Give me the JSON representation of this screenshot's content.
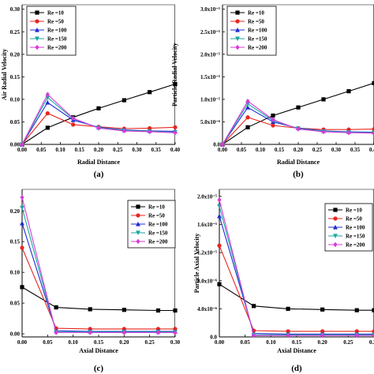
{
  "chart_data": [
    {
      "type": "line",
      "panel_label": "(a)",
      "xlabel": "Radial Distance",
      "ylabel": "Air Radial Velocity",
      "xlim": [
        0.0,
        0.4
      ],
      "ylim": [
        0.0,
        0.31
      ],
      "xticks": [
        "0.00",
        "0.05",
        "0.10",
        "0.15",
        "0.20",
        "0.25",
        "0.30",
        "0.35",
        "0.40"
      ],
      "yticks": [
        "0.00",
        "0.05",
        "0.10",
        "0.15",
        "0.20",
        "0.25",
        "0.30"
      ],
      "legend_position": "top-left",
      "series": [
        {
          "name": "Re =10",
          "color": "#000000",
          "marker": "square",
          "x": [
            0,
            0.0667,
            0.1333,
            0.2,
            0.2667,
            0.3333,
            0.4
          ],
          "y": [
            0,
            0.037,
            0.06,
            0.08,
            0.098,
            0.116,
            0.134
          ]
        },
        {
          "name": "Re =50",
          "color": "#e8261f",
          "marker": "circle",
          "x": [
            0,
            0.0667,
            0.1333,
            0.2,
            0.2667,
            0.3333,
            0.4
          ],
          "y": [
            0,
            0.069,
            0.044,
            0.039,
            0.035,
            0.036,
            0.038
          ]
        },
        {
          "name": "Re =100",
          "color": "#1f2bd6",
          "marker": "triangle-up",
          "x": [
            0,
            0.0667,
            0.1333,
            0.2,
            0.2667,
            0.3333,
            0.4
          ],
          "y": [
            0,
            0.093,
            0.054,
            0.038,
            0.032,
            0.03,
            0.029
          ]
        },
        {
          "name": "Re =150",
          "color": "#1aa6a0",
          "marker": "triangle-down",
          "x": [
            0,
            0.0667,
            0.1333,
            0.2,
            0.2667,
            0.3333,
            0.4
          ],
          "y": [
            0,
            0.104,
            0.057,
            0.037,
            0.031,
            0.029,
            0.027
          ]
        },
        {
          "name": "Re =200",
          "color": "#d93ad9",
          "marker": "diamond",
          "x": [
            0,
            0.0667,
            0.1333,
            0.2,
            0.2667,
            0.3333,
            0.4
          ],
          "y": [
            0,
            0.111,
            0.058,
            0.036,
            0.03,
            0.028,
            0.026
          ]
        }
      ]
    },
    {
      "type": "line",
      "panel_label": "(b)",
      "xlabel": "Radial Distance",
      "ylabel": "Particle Radial Velocity",
      "xlim": [
        0.0,
        0.4
      ],
      "ylim": [
        0.0,
        3.1
      ],
      "xticks": [
        "0.00",
        "0.05",
        "0.10",
        "0.15",
        "0.20",
        "0.25",
        "0.30",
        "0.35",
        "0.40"
      ],
      "yticks": [
        "0.0",
        "5.0x10⁻⁶",
        "1.0x10⁻⁵",
        "1.5x10⁻⁵",
        "2.0x10⁻⁵",
        "2.5x10⁻⁵",
        "3.0x10⁻⁵"
      ],
      "legend_position": "top-left",
      "series": [
        {
          "name": "Re =10",
          "color": "#000000",
          "marker": "square",
          "x": [
            0,
            0.0667,
            0.1333,
            0.2,
            0.2667,
            0.3333,
            0.4
          ],
          "y": [
            0,
            0.38,
            0.64,
            0.82,
            1.0,
            1.18,
            1.36
          ]
        },
        {
          "name": "Re =50",
          "color": "#e8261f",
          "marker": "circle",
          "x": [
            0,
            0.0667,
            0.1333,
            0.2,
            0.2667,
            0.3333,
            0.4
          ],
          "y": [
            0,
            0.6,
            0.42,
            0.36,
            0.33,
            0.33,
            0.34
          ]
        },
        {
          "name": "Re =100",
          "color": "#1f2bd6",
          "marker": "triangle-up",
          "x": [
            0,
            0.0667,
            0.1333,
            0.2,
            0.2667,
            0.3333,
            0.4
          ],
          "y": [
            0,
            0.82,
            0.5,
            0.36,
            0.3,
            0.28,
            0.27
          ]
        },
        {
          "name": "Re =150",
          "color": "#1aa6a0",
          "marker": "triangle-down",
          "x": [
            0,
            0.0667,
            0.1333,
            0.2,
            0.2667,
            0.3333,
            0.4
          ],
          "y": [
            0,
            0.9,
            0.53,
            0.35,
            0.29,
            0.27,
            0.26
          ]
        },
        {
          "name": "Re =200",
          "color": "#d93ad9",
          "marker": "diamond",
          "x": [
            0,
            0.0667,
            0.1333,
            0.2,
            0.2667,
            0.3333,
            0.4
          ],
          "y": [
            0,
            0.96,
            0.55,
            0.34,
            0.28,
            0.26,
            0.25
          ]
        }
      ]
    },
    {
      "type": "line",
      "panel_label": "(c)",
      "xlabel": "Axial Distance",
      "ylabel": "",
      "xlim": [
        0.0,
        0.3
      ],
      "ylim": [
        -0.005,
        0.235
      ],
      "xticks": [
        "0.00",
        "0.05",
        "0.10",
        "0.15",
        "0.20",
        "0.25",
        "0.30"
      ],
      "yticks": [
        "0.00",
        "0.05",
        "0.10",
        "0.15",
        "0.20"
      ],
      "legend_position": "top-right",
      "series": [
        {
          "name": "Re =10",
          "color": "#000000",
          "marker": "square",
          "x": [
            0,
            0.0667,
            0.1333,
            0.2,
            0.2667,
            0.3
          ],
          "y": [
            0.076,
            0.043,
            0.04,
            0.039,
            0.038,
            0.038
          ]
        },
        {
          "name": "Re =50",
          "color": "#e8261f",
          "marker": "circle",
          "x": [
            0,
            0.0667,
            0.1333,
            0.2,
            0.2667,
            0.3
          ],
          "y": [
            0.14,
            0.009,
            0.008,
            0.008,
            0.008,
            0.008
          ]
        },
        {
          "name": "Re =100",
          "color": "#1f2bd6",
          "marker": "triangle-up",
          "x": [
            0,
            0.0667,
            0.1333,
            0.2,
            0.2667,
            0.3
          ],
          "y": [
            0.18,
            0.005,
            0.004,
            0.004,
            0.004,
            0.004
          ]
        },
        {
          "name": "Re =150",
          "color": "#1aa6a0",
          "marker": "triangle-down",
          "x": [
            0,
            0.0667,
            0.1333,
            0.2,
            0.2667,
            0.3
          ],
          "y": [
            0.205,
            0.003,
            0.003,
            0.003,
            0.003,
            0.003
          ]
        },
        {
          "name": "Re =200",
          "color": "#d93ad9",
          "marker": "diamond",
          "x": [
            0,
            0.0667,
            0.1333,
            0.2,
            0.2667,
            0.3
          ],
          "y": [
            0.222,
            0.002,
            0.002,
            0.002,
            0.002,
            0.002
          ]
        }
      ]
    },
    {
      "type": "line",
      "panel_label": "(d)",
      "xlabel": "Axial Distance",
      "ylabel": "Particle Axial Velocity",
      "xlim": [
        0.0,
        0.3
      ],
      "ylim": [
        0.0,
        2.1
      ],
      "xticks": [
        "0.00",
        "0.05",
        "0.10",
        "0.15",
        "0.20",
        "0.25",
        "0.30"
      ],
      "yticks": [
        "0.0",
        "4.0x10⁻⁶",
        "8.0x10⁻⁶",
        "1.2x10⁻⁵",
        "1.6x10⁻⁵",
        "2.0x10⁻⁵"
      ],
      "legend_position": "top-right",
      "series": [
        {
          "name": "Re =10",
          "color": "#000000",
          "marker": "square",
          "x": [
            0,
            0.0667,
            0.1333,
            0.2,
            0.2667,
            0.3
          ],
          "y": [
            0.75,
            0.44,
            0.4,
            0.39,
            0.38,
            0.38
          ]
        },
        {
          "name": "Re =50",
          "color": "#e8261f",
          "marker": "circle",
          "x": [
            0,
            0.0667,
            0.1333,
            0.2,
            0.2667,
            0.3
          ],
          "y": [
            1.3,
            0.09,
            0.08,
            0.08,
            0.08,
            0.08
          ]
        },
        {
          "name": "Re =100",
          "color": "#1f2bd6",
          "marker": "triangle-up",
          "x": [
            0,
            0.0667,
            0.1333,
            0.2,
            0.2667,
            0.3
          ],
          "y": [
            1.72,
            0.05,
            0.04,
            0.04,
            0.04,
            0.04
          ]
        },
        {
          "name": "Re =150",
          "color": "#1aa6a0",
          "marker": "triangle-down",
          "x": [
            0,
            0.0667,
            0.1333,
            0.2,
            0.2667,
            0.3
          ],
          "y": [
            1.86,
            0.03,
            0.03,
            0.03,
            0.03,
            0.03
          ]
        },
        {
          "name": "Re =200",
          "color": "#d93ad9",
          "marker": "diamond",
          "x": [
            0,
            0.0667,
            0.1333,
            0.2,
            0.2667,
            0.3
          ],
          "y": [
            1.95,
            0.02,
            0.02,
            0.02,
            0.02,
            0.02
          ]
        }
      ]
    }
  ]
}
